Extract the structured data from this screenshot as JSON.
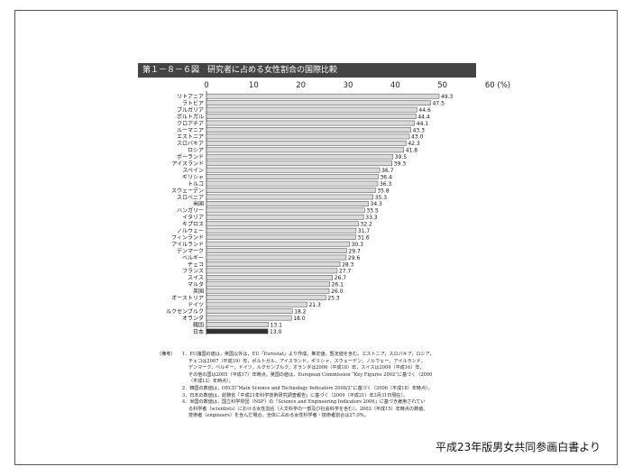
{
  "figure_title": "第１－８－６図　研究者に占める女性割合の国際比較",
  "source": "平成23年版男女共同参画白書より",
  "chart_data": {
    "type": "bar",
    "orientation": "horizontal",
    "title": "第１－８－６図　研究者に占める女性割合の国際比較",
    "xlabel": "(%)",
    "xlim": [
      0,
      60
    ],
    "x_ticks": [
      "0",
      "10",
      "20",
      "30",
      "40",
      "50",
      "60 (%)"
    ],
    "categories": [
      "リトアニア",
      "ラトビア",
      "ブルガリア",
      "ポルトガル",
      "クロアチア",
      "ルーマニア",
      "エストニア",
      "スロバキア",
      "ロシア",
      "ポーランド",
      "アイスランド",
      "スペイン",
      "ギリシャ",
      "トルコ",
      "スウェーデン",
      "スロベニア",
      "米国",
      "ハンガリー",
      "イタリア",
      "キプロス",
      "ノルウェー",
      "フィンランド",
      "アイルランド",
      "デンマーク",
      "ベルギー",
      "チェコ",
      "フランス",
      "スイス",
      "マルタ",
      "英国",
      "オーストリア",
      "ドイツ",
      "ルクセンブルク",
      "オランダ",
      "韓国",
      "日本"
    ],
    "values": [
      49.3,
      47.5,
      44.6,
      44.4,
      44.1,
      43.3,
      43.0,
      42.3,
      41.8,
      39.5,
      39.3,
      36.7,
      36.4,
      36.3,
      35.8,
      35.3,
      34.3,
      33.5,
      33.3,
      32.2,
      31.7,
      31.6,
      30.3,
      29.7,
      29.6,
      28.3,
      27.7,
      26.7,
      26.1,
      26.0,
      25.3,
      21.3,
      18.2,
      18.0,
      13.1,
      13.0
    ],
    "value_labels": [
      "49.3",
      "47.5",
      "44.6",
      "44.4",
      "44.1",
      "43.3",
      "43.0",
      "42.3",
      "41.8",
      "39.5",
      "39.3",
      "36.7",
      "36.4",
      "36.3",
      "35.8",
      "35.3",
      "34.3",
      "33.5",
      "33.3",
      "32.2",
      "31.7",
      "31.6",
      "30.3",
      "29.7",
      "29.6",
      "28.3",
      "27.7",
      "26.7",
      "26.1",
      "26.0",
      "25.3",
      "21.3",
      "18.2",
      "18.0",
      "13.1",
      "13.0"
    ],
    "highlight": "日本",
    "colors": {
      "bar": "#d9d9d9",
      "bar_border": "#444444",
      "highlight": "#333333",
      "axis": "#333333"
    }
  },
  "notes": {
    "label": "（備考）",
    "lines": [
      "1．EU諸国の値は，英国以外は，EU「Eurostat」より作成。推定値，暫定値を含む。エストニア，スロバキア，ロシア，",
      "チェコは2007（平成19）年，ポルトガル，アイスランド，ギリシャ，スウェーデン，ノルウェー，アイルランド，",
      "デンマーク，ベルギー，ドイツ，ルクセンブルク，オランダは2006（平成18）年，スイスは2004（平成16）年，",
      "その他の国は2005（平成17）年時点。英国の値は，European Commission “Key Figures 2002”に基づく（2000",
      "（平成12）年時点）。",
      "2．韓国の数値は，OECD“Main Science and Technology Indicators 2008/2”に基づく（2006（平成18）年時点）。",
      "3．日本の数値は，総務省「平成21年科学技術研究調査報告」に基づく（2009（平成21）年3月31日現在）。",
      "4．米国の数値は，国立科学財団（NSF）の「Science and Engineering Indicators 2006」に基づき雇用されてい",
      "る科学者（scientists）における女性割合（人文科学の一部及び社会科学を含む）。2003（平成15）年時点の数値。",
      "技術者（engineers）を含んだ場合，全体に占める女性科学者・技術者割合は27.0%。"
    ]
  }
}
